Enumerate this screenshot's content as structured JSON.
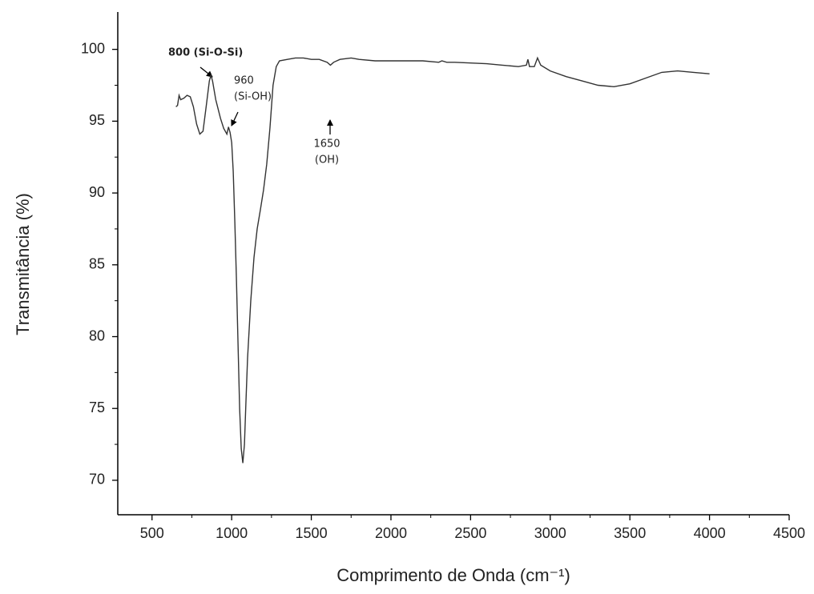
{
  "chart_data": {
    "type": "line",
    "xlabel": "Comprimento de Onda (cm⁻¹)",
    "ylabel": "Transmitância (%)",
    "annotations": [
      [
        "800 (Si-O-Si)"
      ],
      [
        "960",
        "(Si-OH)"
      ],
      [
        "1650",
        "(OH)"
      ]
    ],
    "color": "#333333",
    "x": [
      650,
      660,
      670,
      680,
      700,
      720,
      740,
      760,
      780,
      800,
      820,
      840,
      860,
      870,
      880,
      900,
      930,
      950,
      970,
      980,
      990,
      1000,
      1010,
      1020,
      1030,
      1040,
      1050,
      1060,
      1070,
      1080,
      1090,
      1100,
      1120,
      1140,
      1160,
      1180,
      1200,
      1220,
      1240,
      1260,
      1280,
      1300,
      1350,
      1400,
      1450,
      1500,
      1550,
      1600,
      1620,
      1640,
      1680,
      1750,
      1800,
      1900,
      2000,
      2100,
      2200,
      2300,
      2320,
      2350,
      2400,
      2500,
      2600,
      2700,
      2800,
      2850,
      2860,
      2870,
      2900,
      2920,
      2940,
      3000,
      3100,
      3200,
      3300,
      3400,
      3500,
      3600,
      3700,
      3800,
      3900,
      4000
    ],
    "values": [
      96.0,
      96.1,
      96.8,
      96.5,
      96.6,
      96.8,
      96.7,
      96.0,
      94.8,
      94.1,
      94.3,
      96.0,
      97.8,
      98.2,
      97.8,
      96.5,
      95.2,
      94.5,
      94.1,
      94.6,
      94.2,
      93.5,
      91.5,
      88.0,
      84.0,
      79.5,
      75.0,
      72.2,
      71.2,
      72.5,
      75.5,
      78.5,
      82.5,
      85.5,
      87.5,
      88.8,
      90.2,
      92.0,
      94.5,
      97.5,
      98.8,
      99.2,
      99.3,
      99.4,
      99.4,
      99.3,
      99.3,
      99.1,
      98.9,
      99.1,
      99.3,
      99.4,
      99.3,
      99.2,
      99.2,
      99.2,
      99.2,
      99.1,
      99.2,
      99.1,
      99.1,
      99.05,
      99.0,
      98.9,
      98.8,
      98.9,
      99.3,
      98.8,
      98.8,
      99.4,
      98.9,
      98.5,
      98.1,
      97.8,
      97.5,
      97.4,
      97.6,
      98.0,
      98.4,
      98.5,
      98.4,
      98.3
    ],
    "xlim": [
      285,
      4500
    ],
    "xticks": [
      500,
      1000,
      1500,
      2000,
      2500,
      3000,
      3500,
      4000,
      4500
    ],
    "ylim": [
      67.6,
      102.6
    ],
    "yticks": [
      70,
      75,
      80,
      85,
      90,
      95,
      100
    ],
    "grid": false
  }
}
